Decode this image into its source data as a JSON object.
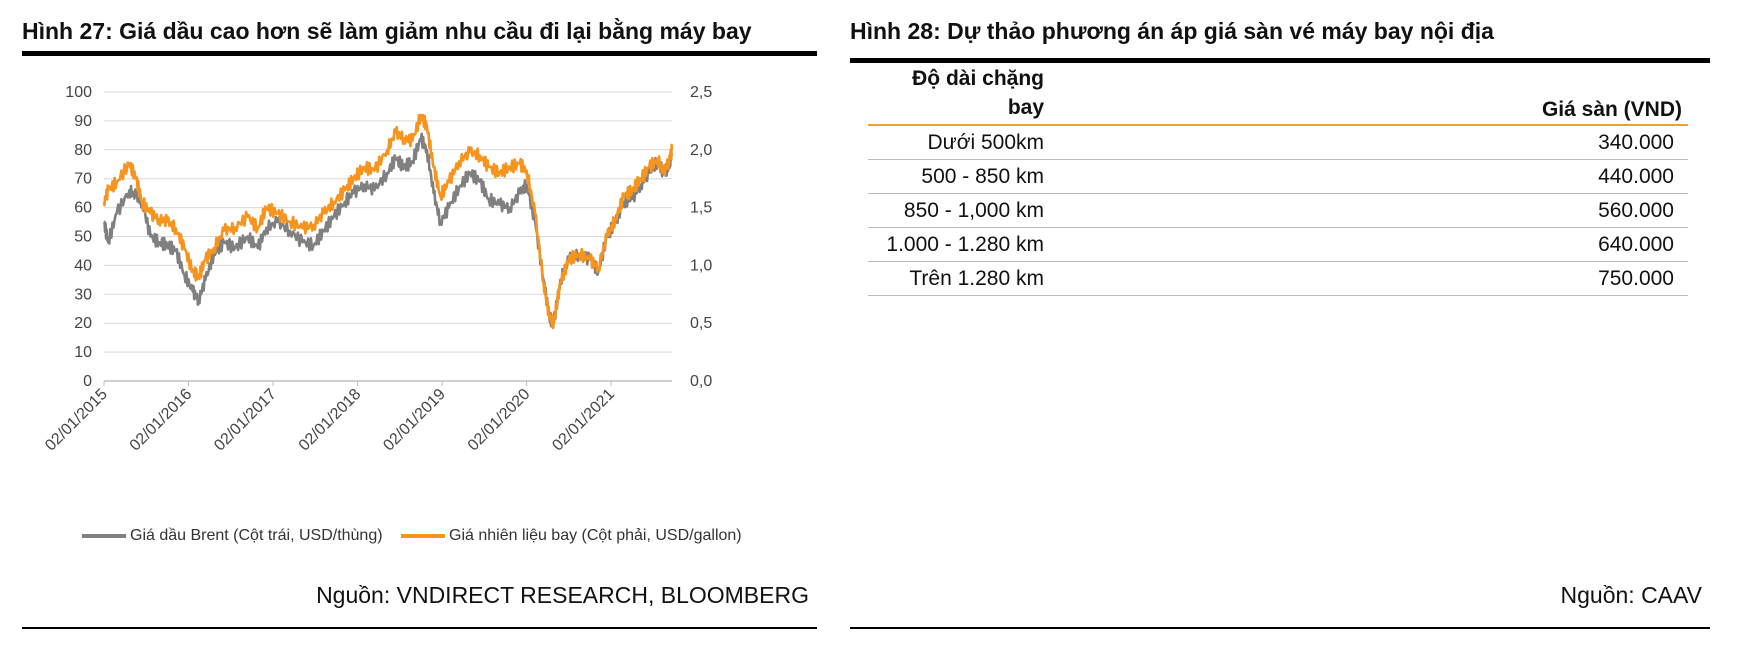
{
  "left_figure": {
    "title": "Hình 27: Giá dầu cao hơn sẽ làm giảm nhu cầu đi lại bằng máy bay",
    "source": "Nguồn: VNDIRECT RESEARCH, BLOOMBERG",
    "legend": [
      {
        "label": "Giá dầu Brent (Cột trái, USD/thùng)",
        "color": "#808080"
      },
      {
        "label": "Giá nhiên liệu bay (Cột phải, USD/gallon)",
        "color": "#f7941d"
      }
    ]
  },
  "chart_data": {
    "type": "line",
    "x_tick_labels": [
      "02/01/2015",
      "02/01/2016",
      "02/01/2017",
      "02/01/2018",
      "02/01/2019",
      "02/01/2020",
      "02/01/2021"
    ],
    "y_left_ticks": [
      "0",
      "10",
      "20",
      "30",
      "40",
      "50",
      "60",
      "70",
      "80",
      "90",
      "100"
    ],
    "y_right_ticks": [
      "0,0",
      "0,5",
      "1,0",
      "1,5",
      "2,0",
      "2,5"
    ],
    "ylim_left": [
      0,
      100
    ],
    "ylim_right": [
      0,
      2.5
    ],
    "grid": true,
    "series": [
      {
        "name": "Giá dầu Brent (Cột trái, USD/thùng)",
        "axis": "left",
        "color": "#808080",
        "x": [
          2015.0,
          2015.05,
          2015.15,
          2015.3,
          2015.38,
          2015.45,
          2015.55,
          2015.65,
          2015.75,
          2015.85,
          2015.95,
          2016.05,
          2016.12,
          2016.2,
          2016.3,
          2016.42,
          2016.55,
          2016.7,
          2016.82,
          2016.92,
          2017.05,
          2017.2,
          2017.35,
          2017.48,
          2017.6,
          2017.72,
          2017.85,
          2017.95,
          2018.08,
          2018.2,
          2018.35,
          2018.45,
          2018.55,
          2018.65,
          2018.75,
          2018.82,
          2018.9,
          2018.98,
          2019.08,
          2019.2,
          2019.33,
          2019.45,
          2019.55,
          2019.68,
          2019.8,
          2019.92,
          2020.0,
          2020.1,
          2020.2,
          2020.27,
          2020.32,
          2020.4,
          2020.5,
          2020.62,
          2020.75,
          2020.85,
          2020.95,
          2021.05,
          2021.15,
          2021.25,
          2021.35,
          2021.45,
          2021.55,
          2021.62,
          2021.68,
          2021.72
        ],
        "values": [
          55,
          48,
          58,
          66,
          64,
          62,
          50,
          48,
          47,
          45,
          37,
          31,
          28,
          35,
          44,
          48,
          46,
          50,
          46,
          53,
          55,
          52,
          48,
          47,
          52,
          57,
          62,
          65,
          68,
          66,
          72,
          77,
          74,
          76,
          84,
          80,
          65,
          55,
          60,
          67,
          72,
          69,
          63,
          61,
          60,
          65,
          68,
          55,
          35,
          22,
          20,
          35,
          42,
          44,
          42,
          38,
          50,
          55,
          62,
          63,
          68,
          72,
          76,
          72,
          74,
          79
        ]
      },
      {
        "name": "Giá nhiên liệu bay (Cột phải, USD/gallon)",
        "axis": "right",
        "color": "#f7941d",
        "x": [
          2015.0,
          2015.05,
          2015.15,
          2015.3,
          2015.38,
          2015.45,
          2015.55,
          2015.65,
          2015.75,
          2015.85,
          2015.95,
          2016.05,
          2016.12,
          2016.2,
          2016.3,
          2016.42,
          2016.55,
          2016.7,
          2016.82,
          2016.92,
          2017.05,
          2017.2,
          2017.35,
          2017.48,
          2017.6,
          2017.72,
          2017.85,
          2017.95,
          2018.08,
          2018.2,
          2018.35,
          2018.45,
          2018.55,
          2018.65,
          2018.75,
          2018.82,
          2018.9,
          2018.98,
          2019.08,
          2019.2,
          2019.33,
          2019.45,
          2019.55,
          2019.68,
          2019.8,
          2019.92,
          2020.0,
          2020.1,
          2020.2,
          2020.27,
          2020.32,
          2020.4,
          2020.5,
          2020.62,
          2020.75,
          2020.85,
          2020.95,
          2021.05,
          2021.15,
          2021.25,
          2021.35,
          2021.45,
          2021.55,
          2021.62,
          2021.68,
          2021.72
        ],
        "values": [
          1.55,
          1.65,
          1.72,
          1.88,
          1.75,
          1.55,
          1.45,
          1.4,
          1.38,
          1.32,
          1.15,
          0.95,
          0.9,
          1.05,
          1.15,
          1.3,
          1.33,
          1.42,
          1.32,
          1.5,
          1.45,
          1.38,
          1.32,
          1.35,
          1.45,
          1.55,
          1.65,
          1.75,
          1.85,
          1.82,
          2.0,
          2.15,
          2.1,
          2.08,
          2.3,
          2.2,
          1.85,
          1.6,
          1.72,
          1.9,
          1.98,
          1.95,
          1.85,
          1.8,
          1.85,
          1.88,
          1.82,
          1.45,
          0.85,
          0.55,
          0.5,
          0.85,
          1.05,
          1.1,
          1.05,
          0.98,
          1.25,
          1.4,
          1.6,
          1.65,
          1.75,
          1.85,
          1.92,
          1.8,
          1.9,
          2.0
        ]
      }
    ]
  },
  "right_figure": {
    "title": "Hình 28: Dự thảo phương án áp giá sàn vé máy bay nội địa",
    "source": "Nguồn: CAAV",
    "table": {
      "headers": [
        "Độ dài chặng bay",
        "Giá sàn (VND)"
      ],
      "rows": [
        [
          "Dưới 500km",
          "340.000"
        ],
        [
          "500 - 850 km",
          "440.000"
        ],
        [
          "850 - 1,000 km",
          "560.000"
        ],
        [
          "1.000 - 1.280 km",
          "640.000"
        ],
        [
          "Trên 1.280 km",
          "750.000"
        ]
      ]
    }
  }
}
